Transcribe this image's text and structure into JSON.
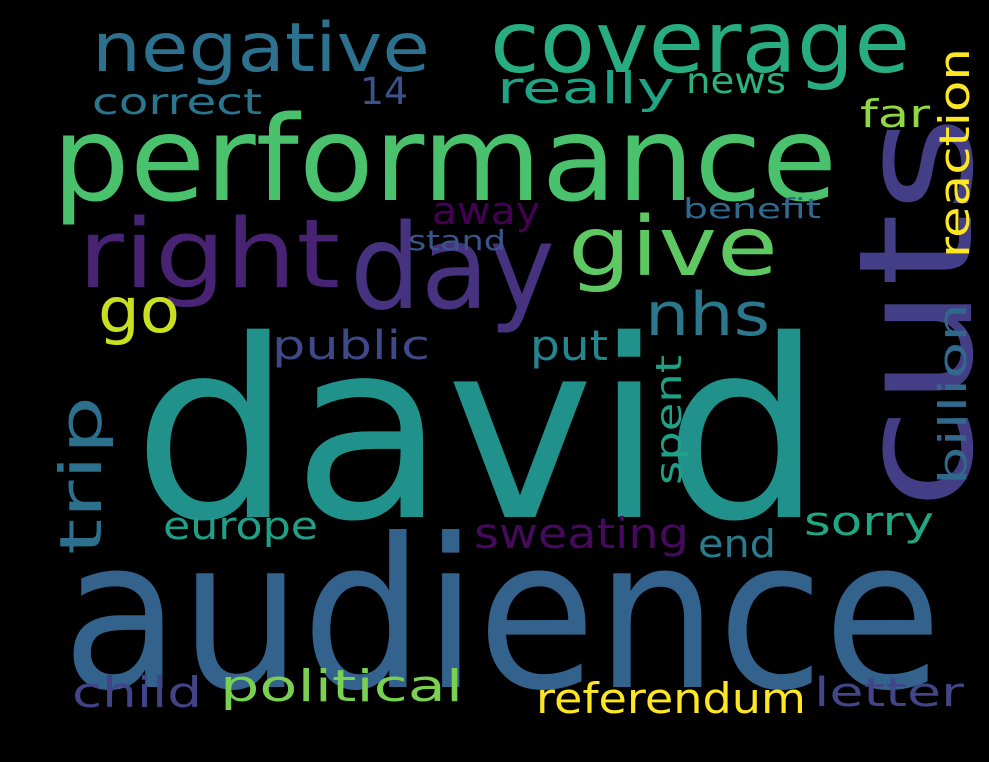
{
  "background_color": "#000000",
  "words": [
    {
      "id": "david",
      "text": "david",
      "color": "#21918c"
    },
    {
      "id": "audience",
      "text": "audience",
      "color": "#33638d"
    },
    {
      "id": "performance",
      "text": "performance",
      "color": "#4ac16d"
    },
    {
      "id": "cuts",
      "text": "cuts",
      "color": "#433e85"
    },
    {
      "id": "day",
      "text": "day",
      "color": "#46327e"
    },
    {
      "id": "right",
      "text": "right",
      "color": "#482374"
    },
    {
      "id": "coverage",
      "text": "coverage",
      "color": "#27ad81"
    },
    {
      "id": "negative",
      "text": "negative",
      "color": "#2c728e"
    },
    {
      "id": "give",
      "text": "give",
      "color": "#5ec962"
    },
    {
      "id": "go",
      "text": "go",
      "color": "#c8e020"
    },
    {
      "id": "nhs",
      "text": "nhs",
      "color": "#2a788e"
    },
    {
      "id": "trip",
      "text": "trip",
      "color": "#2d708e"
    },
    {
      "id": "reaction",
      "text": "reaction",
      "color": "#fde725"
    },
    {
      "id": "really",
      "text": "really",
      "color": "#20a486"
    },
    {
      "id": "correct",
      "text": "correct",
      "color": "#2a768e"
    },
    {
      "id": "news",
      "text": "news",
      "color": "#2db27d"
    },
    {
      "id": "14",
      "text": "14",
      "color": "#3b528b"
    },
    {
      "id": "far",
      "text": "far",
      "color": "#90d743"
    },
    {
      "id": "away",
      "text": "away",
      "color": "#440154"
    },
    {
      "id": "benefit",
      "text": "benefit",
      "color": "#31688e"
    },
    {
      "id": "stand",
      "text": "stand",
      "color": "#39568c"
    },
    {
      "id": "public",
      "text": "public",
      "color": "#3e4989"
    },
    {
      "id": "put",
      "text": "put",
      "color": "#24868e"
    },
    {
      "id": "billion",
      "text": "billion",
      "color": "#31688e"
    },
    {
      "id": "spent",
      "text": "spent",
      "color": "#1fa187"
    },
    {
      "id": "europe",
      "text": "europe",
      "color": "#1fa088"
    },
    {
      "id": "sweating",
      "text": "sweating",
      "color": "#450a5c"
    },
    {
      "id": "end",
      "text": "end",
      "color": "#287c8e"
    },
    {
      "id": "sorry",
      "text": "sorry",
      "color": "#22a785"
    },
    {
      "id": "child",
      "text": "child",
      "color": "#414487"
    },
    {
      "id": "political",
      "text": "political",
      "color": "#7ad151"
    },
    {
      "id": "referendum",
      "text": "referendum",
      "color": "#fde725"
    },
    {
      "id": "letter",
      "text": "letter",
      "color": "#404688"
    }
  ]
}
